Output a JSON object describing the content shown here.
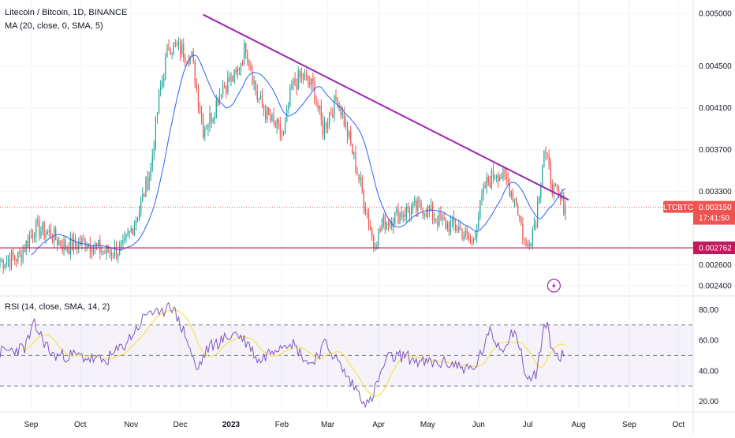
{
  "header": {
    "symbol_title": "Litecoin / Bitcoin, 1D, BINANCE",
    "ma_label": "MA (20, close, 0, SMA, 5)",
    "rsi_label": "RSI (14, close, SMA, 14, 2)"
  },
  "colors": {
    "up": "#26a69a",
    "down": "#ef5350",
    "ma_line": "#2962ff",
    "trend_line": "#9c27b0",
    "support_line": "#c2185b",
    "rsi_line": "#7e57c2",
    "rsi_ma": "#f5e663",
    "price_badge": "#ef5350",
    "support_badge": "#c2185b"
  },
  "price_axis": {
    "ticks": [
      "0.005000",
      "0.004500",
      "0.004100",
      "0.003700",
      "0.003300",
      "0.002600",
      "0.002400"
    ],
    "current_symbol": "LTCBTC",
    "current_price": "0.003150",
    "countdown": "17:41:50",
    "support_price": "0.002762"
  },
  "rsi_axis": {
    "ticks": [
      "80.00",
      "60.00",
      "40.00",
      "20.00"
    ],
    "upper_band": 70,
    "middle_band": 50,
    "lower_band": 30
  },
  "time_axis": {
    "labels": [
      "Sep",
      "Oct",
      "Nov",
      "Dec",
      "2023",
      "Feb",
      "Mar",
      "Apr",
      "May",
      "Jun",
      "Jul",
      "Aug",
      "Sep",
      "Oct"
    ]
  },
  "icons": {
    "lightning": "lightning-bolt-icon"
  },
  "chart_data": {
    "type": "candlestick",
    "title": "Litecoin / Bitcoin, 1D, BINANCE",
    "x_range": [
      "2022-08-13",
      "2023-10-10"
    ],
    "price_ylim": [
      0.00231,
      0.00513
    ],
    "current_price": 0.00315,
    "support_level": 0.002762,
    "trendline": {
      "from": [
        "2022-12-15",
        0.00499
      ],
      "to": [
        "2023-07-26",
        0.00322
      ]
    },
    "price_path": [
      [
        "2022-08-13",
        0.00263
      ],
      [
        "2022-08-25",
        0.00268
      ],
      [
        "2022-09-03",
        0.00295
      ],
      [
        "2022-09-12",
        0.0029
      ],
      [
        "2022-09-22",
        0.00277
      ],
      [
        "2022-10-05",
        0.00282
      ],
      [
        "2022-10-16",
        0.00272
      ],
      [
        "2022-10-27",
        0.00275
      ],
      [
        "2022-11-06",
        0.00312
      ],
      [
        "2022-11-13",
        0.00352
      ],
      [
        "2022-11-18",
        0.0042
      ],
      [
        "2022-11-24",
        0.0047
      ],
      [
        "2022-12-01",
        0.00466
      ],
      [
        "2022-12-08",
        0.00458
      ],
      [
        "2022-12-15",
        0.0039
      ],
      [
        "2022-12-21",
        0.00405
      ],
      [
        "2022-12-26",
        0.0043
      ],
      [
        "2023-01-04",
        0.0044
      ],
      [
        "2023-01-10",
        0.0047
      ],
      [
        "2023-01-17",
        0.0042
      ],
      [
        "2023-01-24",
        0.004
      ],
      [
        "2023-02-02",
        0.00382
      ],
      [
        "2023-02-07",
        0.0043
      ],
      [
        "2023-02-13",
        0.0044
      ],
      [
        "2023-02-20",
        0.0043
      ],
      [
        "2023-02-26",
        0.0039
      ],
      [
        "2023-03-07",
        0.0042
      ],
      [
        "2023-03-14",
        0.0038
      ],
      [
        "2023-03-22",
        0.0033
      ],
      [
        "2023-03-29",
        0.0028
      ],
      [
        "2023-04-04",
        0.003
      ],
      [
        "2023-04-15",
        0.0031
      ],
      [
        "2023-04-28",
        0.00315
      ],
      [
        "2023-05-10",
        0.003
      ],
      [
        "2023-05-20",
        0.00295
      ],
      [
        "2023-05-28",
        0.0028
      ],
      [
        "2023-06-05",
        0.00335
      ],
      [
        "2023-06-12",
        0.0035
      ],
      [
        "2023-06-18",
        0.0034
      ],
      [
        "2023-06-24",
        0.0032
      ],
      [
        "2023-06-30",
        0.00275
      ],
      [
        "2023-07-06",
        0.00305
      ],
      [
        "2023-07-11",
        0.0037
      ],
      [
        "2023-07-17",
        0.0033
      ],
      [
        "2023-07-24",
        0.00315
      ]
    ],
    "rsi_ylim": [
      14,
      88
    ],
    "rsi_path": [
      [
        "2022-08-13",
        52
      ],
      [
        "2022-08-28",
        55
      ],
      [
        "2022-09-03",
        70
      ],
      [
        "2022-09-14",
        50
      ],
      [
        "2022-09-28",
        50
      ],
      [
        "2022-10-16",
        46
      ],
      [
        "2022-10-28",
        57
      ],
      [
        "2022-11-06",
        70
      ],
      [
        "2022-11-12",
        80
      ],
      [
        "2022-11-19",
        75
      ],
      [
        "2022-11-24",
        86
      ],
      [
        "2022-12-04",
        64
      ],
      [
        "2022-12-11",
        40
      ],
      [
        "2022-12-18",
        55
      ],
      [
        "2023-01-04",
        65
      ],
      [
        "2023-01-12",
        57
      ],
      [
        "2023-01-18",
        46
      ],
      [
        "2023-01-27",
        55
      ],
      [
        "2023-02-06",
        60
      ],
      [
        "2023-02-18",
        44
      ],
      [
        "2023-02-28",
        58
      ],
      [
        "2023-03-14",
        34
      ],
      [
        "2023-03-26",
        17
      ],
      [
        "2023-04-06",
        48
      ],
      [
        "2023-04-16",
        50
      ],
      [
        "2023-04-28",
        45
      ],
      [
        "2023-05-15",
        45
      ],
      [
        "2023-05-29",
        40
      ],
      [
        "2023-06-08",
        65
      ],
      [
        "2023-06-15",
        54
      ],
      [
        "2023-06-23",
        68
      ],
      [
        "2023-07-01",
        33
      ],
      [
        "2023-07-06",
        38
      ],
      [
        "2023-07-12",
        72
      ],
      [
        "2023-07-17",
        51
      ],
      [
        "2023-07-24",
        50
      ]
    ]
  }
}
